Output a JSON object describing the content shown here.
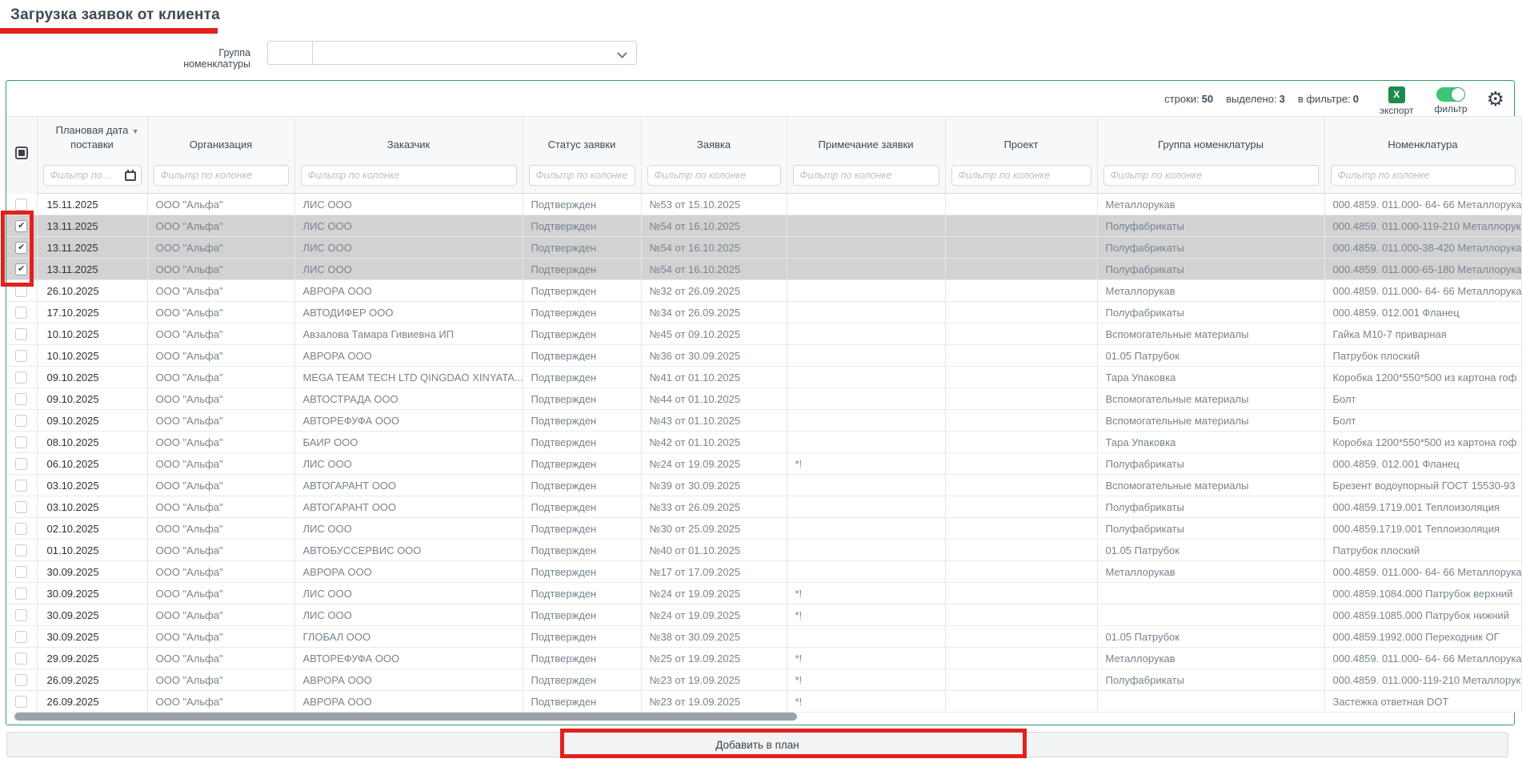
{
  "page": {
    "title": "Загрузка заявок от клиента"
  },
  "toolbar": {
    "group_label": "Группа номенклатуры",
    "group_value": ""
  },
  "stats": {
    "rows_label": "строки:",
    "rows_value": "50",
    "selected_label": "выделено:",
    "selected_value": "3",
    "filtered_label": "в фильтре:",
    "filtered_value": "0",
    "export_icon_text": "X",
    "export_label": "экспорт",
    "filter_toggle_label": "фильтр",
    "filter_toggle_state": "on"
  },
  "table": {
    "select_all_state": "indeterminate",
    "columns": [
      {
        "field": "date",
        "label": "Плановая дата поставки",
        "filter_placeholder": "Фильтр по ...",
        "sort": "desc",
        "has_calendar": true
      },
      {
        "field": "org",
        "label": "Организация",
        "filter_placeholder": "Фильтр по колонке"
      },
      {
        "field": "customer",
        "label": "Заказчик",
        "filter_placeholder": "Фильтр по колонке"
      },
      {
        "field": "status",
        "label": "Статус заявки",
        "filter_placeholder": "Фильтр по колонке"
      },
      {
        "field": "request",
        "label": "Заявка",
        "filter_placeholder": "Фильтр по колонке"
      },
      {
        "field": "note",
        "label": "Примечание заявки",
        "filter_placeholder": "Фильтр по колонке"
      },
      {
        "field": "project",
        "label": "Проект",
        "filter_placeholder": "Фильтр по колонке"
      },
      {
        "field": "group",
        "label": "Группа номенклатуры",
        "filter_placeholder": "Фильтр по колонке"
      },
      {
        "field": "nomenclature",
        "label": "Номенклатура",
        "filter_placeholder": "Фильтр по колонке"
      }
    ],
    "rows": [
      {
        "checked": false,
        "selected": false,
        "date": "15.11.2025",
        "org": "ООО \"Альфа\"",
        "customer": "ЛИС ООО",
        "status": "Подтвержден",
        "request": "№53 от 15.10.2025",
        "note": "",
        "project": "",
        "group": "Металлорукав",
        "nomenclature": "000.4859. 011.000- 64- 66 Металлорука"
      },
      {
        "checked": true,
        "selected": true,
        "date": "13.11.2025",
        "org": "ООО \"Альфа\"",
        "customer": "ЛИС ООО",
        "status": "Подтвержден",
        "request": "№54 от 16.10.2025",
        "note": "",
        "project": "",
        "group": "Полуфабрикаты",
        "nomenclature": "000.4859. 011.000-119-210 Металлорук"
      },
      {
        "checked": true,
        "selected": true,
        "date": "13.11.2025",
        "org": "ООО \"Альфа\"",
        "customer": "ЛИС ООО",
        "status": "Подтвержден",
        "request": "№54 от 16.10.2025",
        "note": "",
        "project": "",
        "group": "Полуфабрикаты",
        "nomenclature": "000.4859. 011.000-38-420 Металлорука"
      },
      {
        "checked": true,
        "selected": true,
        "date": "13.11.2025",
        "org": "ООО \"Альфа\"",
        "customer": "ЛИС ООО",
        "status": "Подтвержден",
        "request": "№54 от 16.10.2025",
        "note": "",
        "project": "",
        "group": "Полуфабрикаты",
        "nomenclature": "000.4859. 011.000-65-180 Металлорука"
      },
      {
        "checked": false,
        "selected": false,
        "date": "26.10.2025",
        "org": "ООО \"Альфа\"",
        "customer": "АВРОРА ООО",
        "status": "Подтвержден",
        "request": "№32 от 26.09.2025",
        "note": "",
        "project": "",
        "group": "Металлорукав",
        "nomenclature": "000.4859. 011.000- 64- 66 Металлорука"
      },
      {
        "checked": false,
        "selected": false,
        "date": "17.10.2025",
        "org": "ООО \"Альфа\"",
        "customer": "АВТОДИФЕР ООО",
        "status": "Подтвержден",
        "request": "№34 от 26.09.2025",
        "note": "",
        "project": "",
        "group": "Полуфабрикаты",
        "nomenclature": "000.4859. 012.001 Фланец"
      },
      {
        "checked": false,
        "selected": false,
        "date": "10.10.2025",
        "org": "ООО \"Альфа\"",
        "customer": "Авзалова Тамара Гивиевна ИП",
        "status": "Подтвержден",
        "request": "№45 от 09.10.2025",
        "note": "",
        "project": "",
        "group": "Вспомогательные материалы",
        "nomenclature": "Гайка М10-7 приварная"
      },
      {
        "checked": false,
        "selected": false,
        "date": "10.10.2025",
        "org": "ООО \"Альфа\"",
        "customer": "АВРОРА ООО",
        "status": "Подтвержден",
        "request": "№36 от 30.09.2025",
        "note": "",
        "project": "",
        "group": "01.05 Патрубок",
        "nomenclature": "Патрубок плоский"
      },
      {
        "checked": false,
        "selected": false,
        "date": "09.10.2025",
        "org": "ООО \"Альфа\"",
        "customer": "MEGA TEAM TECH LTD QINGDAO XINYATA...",
        "status": "Подтвержден",
        "request": "№41 от 01.10.2025",
        "note": "",
        "project": "",
        "group": "Тара Упаковка",
        "nomenclature": "Коробка 1200*550*500 из картона гоф"
      },
      {
        "checked": false,
        "selected": false,
        "date": "09.10.2025",
        "org": "ООО \"Альфа\"",
        "customer": "АВТОСТРАДА ООО",
        "status": "Подтвержден",
        "request": "№44 от 01.10.2025",
        "note": "",
        "project": "",
        "group": "Вспомогательные материалы",
        "nomenclature": "Болт"
      },
      {
        "checked": false,
        "selected": false,
        "date": "09.10.2025",
        "org": "ООО \"Альфа\"",
        "customer": "АВТОРЕФУФА ООО",
        "status": "Подтвержден",
        "request": "№43 от 01.10.2025",
        "note": "",
        "project": "",
        "group": "Вспомогательные материалы",
        "nomenclature": "Болт"
      },
      {
        "checked": false,
        "selected": false,
        "date": "08.10.2025",
        "org": "ООО \"Альфа\"",
        "customer": "БАИР ООО",
        "status": "Подтвержден",
        "request": "№42 от 01.10.2025",
        "note": "",
        "project": "",
        "group": "Тара Упаковка",
        "nomenclature": "Коробка 1200*550*500 из картона гоф"
      },
      {
        "checked": false,
        "selected": false,
        "date": "06.10.2025",
        "org": "ООО \"Альфа\"",
        "customer": "ЛИС ООО",
        "status": "Подтвержден",
        "request": "№24 от 19.09.2025",
        "note": "*!",
        "project": "",
        "group": "Полуфабрикаты",
        "nomenclature": "000.4859. 012.001 Фланец"
      },
      {
        "checked": false,
        "selected": false,
        "date": "03.10.2025",
        "org": "ООО \"Альфа\"",
        "customer": "АВТОГАРАНТ ООО",
        "status": "Подтвержден",
        "request": "№39 от 30.09.2025",
        "note": "",
        "project": "",
        "group": "Вспомогательные материалы",
        "nomenclature": "Брезент водоупорный ГОСТ 15530-93"
      },
      {
        "checked": false,
        "selected": false,
        "date": "03.10.2025",
        "org": "ООО \"Альфа\"",
        "customer": "АВТОГАРАНТ ООО",
        "status": "Подтвержден",
        "request": "№33 от 26.09.2025",
        "note": "",
        "project": "",
        "group": "Полуфабрикаты",
        "nomenclature": "000.4859.1719.001 Теплоизоляция"
      },
      {
        "checked": false,
        "selected": false,
        "date": "02.10.2025",
        "org": "ООО \"Альфа\"",
        "customer": "ЛИС ООО",
        "status": "Подтвержден",
        "request": "№30 от 25.09.2025",
        "note": "",
        "project": "",
        "group": "Полуфабрикаты",
        "nomenclature": "000.4859.1719.001 Теплоизоляция"
      },
      {
        "checked": false,
        "selected": false,
        "date": "01.10.2025",
        "org": "ООО \"Альфа\"",
        "customer": "АВТОБУССЕРВИС ООО",
        "status": "Подтвержден",
        "request": "№40 от 01.10.2025",
        "note": "",
        "project": "",
        "group": "01.05 Патрубок",
        "nomenclature": "Патрубок плоский"
      },
      {
        "checked": false,
        "selected": false,
        "date": "30.09.2025",
        "org": "ООО \"Альфа\"",
        "customer": "АВРОРА ООО",
        "status": "Подтвержден",
        "request": "№17 от 17.09.2025",
        "note": "",
        "project": "",
        "group": "Металлорукав",
        "nomenclature": "000.4859. 011.000- 64- 66 Металлорука"
      },
      {
        "checked": false,
        "selected": false,
        "date": "30.09.2025",
        "org": "ООО \"Альфа\"",
        "customer": "ЛИС ООО",
        "status": "Подтвержден",
        "request": "№24 от 19.09.2025",
        "note": "*!",
        "project": "",
        "group": "",
        "nomenclature": "000.4859.1084.000 Патрубок верхний"
      },
      {
        "checked": false,
        "selected": false,
        "date": "30.09.2025",
        "org": "ООО \"Альфа\"",
        "customer": "ЛИС ООО",
        "status": "Подтвержден",
        "request": "№24 от 19.09.2025",
        "note": "*!",
        "project": "",
        "group": "",
        "nomenclature": "000.4859.1085.000 Патрубок нижний"
      },
      {
        "checked": false,
        "selected": false,
        "date": "30.09.2025",
        "org": "ООО \"Альфа\"",
        "customer": "ГЛОБАЛ ООО",
        "status": "Подтвержден",
        "request": "№38 от 30.09.2025",
        "note": "",
        "project": "",
        "group": "01.05 Патрубок",
        "nomenclature": "000.4859.1992.000 Переходник ОГ"
      },
      {
        "checked": false,
        "selected": false,
        "date": "29.09.2025",
        "org": "ООО \"Альфа\"",
        "customer": "АВТОРЕФУФА ООО",
        "status": "Подтвержден",
        "request": "№25 от 19.09.2025",
        "note": "*!",
        "project": "",
        "group": "Металлорукав",
        "nomenclature": "000.4859. 011.000- 64- 66 Металлорука"
      },
      {
        "checked": false,
        "selected": false,
        "date": "26.09.2025",
        "org": "ООО \"Альфа\"",
        "customer": "АВРОРА ООО",
        "status": "Подтвержден",
        "request": "№23 от 19.09.2025",
        "note": "*!",
        "project": "",
        "group": "Полуфабрикаты",
        "nomenclature": "000.4859. 011.000-119-210 Металлорук"
      },
      {
        "checked": false,
        "selected": false,
        "date": "26.09.2025",
        "org": "ООО \"Альфа\"",
        "customer": "АВРОРА ООО",
        "status": "Подтвержден",
        "request": "№23 от 19.09.2025",
        "note": "*!",
        "project": "",
        "group": "",
        "nomenclature": "Застежка ответная DOT"
      }
    ]
  },
  "footer": {
    "add_button": "Добавить в план"
  },
  "colors": {
    "annotation_red": "#e3201b",
    "panel_border_green": "#2f9e68",
    "export_green": "#1f8a4c",
    "toggle_green": "#3ec576",
    "selected_row_bg": "#d2d2d2"
  }
}
